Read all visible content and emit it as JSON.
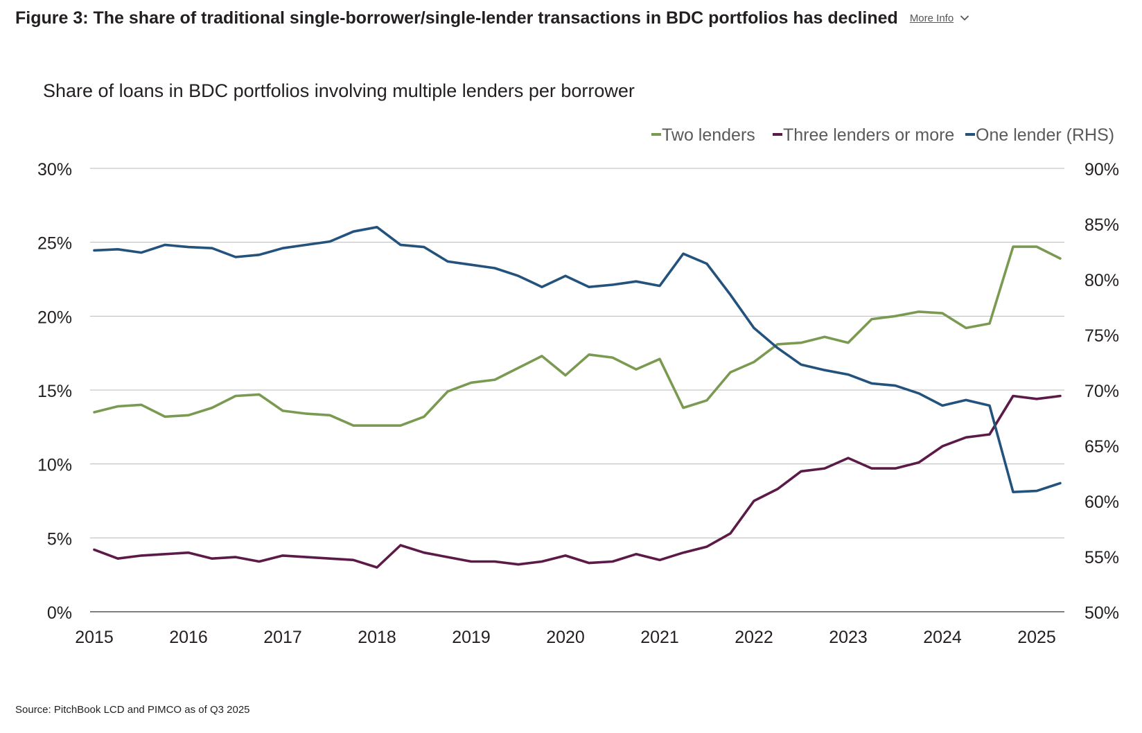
{
  "figure": {
    "title": "Figure 3: The share of traditional single-borrower/single-lender transactions in BDC portfolios has declined",
    "more_info_label": "More Info",
    "more_info_icon": "chevron-down-icon",
    "source": "Source: PitchBook LCD and PIMCO as of Q3 2025"
  },
  "chart_data": {
    "type": "line",
    "title": "Share of loans in BDC portfolios involving multiple lenders per borrower",
    "x": [
      "2015Q1",
      "2015Q2",
      "2015Q3",
      "2015Q4",
      "2016Q1",
      "2016Q2",
      "2016Q3",
      "2016Q4",
      "2017Q1",
      "2017Q2",
      "2017Q3",
      "2017Q4",
      "2018Q1",
      "2018Q2",
      "2018Q3",
      "2018Q4",
      "2019Q1",
      "2019Q2",
      "2019Q3",
      "2019Q4",
      "2020Q1",
      "2020Q2",
      "2020Q3",
      "2020Q4",
      "2021Q1",
      "2021Q2",
      "2021Q3",
      "2021Q4",
      "2022Q1",
      "2022Q2",
      "2022Q3",
      "2022Q4",
      "2023Q1",
      "2023Q2",
      "2023Q3",
      "2023Q4",
      "2024Q1",
      "2024Q2",
      "2024Q3",
      "2024Q4",
      "2025Q1",
      "2025Q2",
      "2025Q3"
    ],
    "xticks": [
      "2015",
      "2016",
      "2017",
      "2018",
      "2019",
      "2020",
      "2021",
      "2022",
      "2023",
      "2024",
      "2025"
    ],
    "xticks_at": [
      "2015Q1",
      "2016Q1",
      "2017Q1",
      "2018Q1",
      "2019Q1",
      "2020Q1",
      "2021Q1",
      "2022Q1",
      "2023Q1",
      "2024Q1",
      "2025Q1"
    ],
    "y_left": {
      "ticks": [
        "0%",
        "5%",
        "10%",
        "15%",
        "20%",
        "25%",
        "30%"
      ],
      "ylim": [
        0,
        30
      ]
    },
    "y_right": {
      "ticks": [
        "50%",
        "55%",
        "60%",
        "65%",
        "70%",
        "75%",
        "80%",
        "85%",
        "90%"
      ],
      "ylim": [
        50,
        90
      ]
    },
    "grid": true,
    "legend_position": "top-right",
    "series": [
      {
        "name": "Two lenders",
        "axis": "left",
        "color": "#7a9a52",
        "values": [
          13.5,
          13.9,
          14.0,
          13.2,
          13.3,
          13.8,
          14.6,
          14.7,
          13.6,
          13.4,
          13.3,
          12.6,
          12.6,
          12.6,
          13.2,
          14.9,
          15.5,
          15.7,
          16.5,
          17.3,
          16.0,
          17.4,
          17.2,
          16.4,
          17.1,
          13.8,
          14.3,
          16.2,
          16.9,
          18.1,
          18.2,
          18.6,
          18.2,
          19.8,
          20.0,
          20.3,
          20.2,
          19.2,
          19.5,
          24.7,
          24.7,
          23.9,
          null
        ]
      },
      {
        "name": "Three lenders or more",
        "axis": "left",
        "color": "#5b1a47",
        "values": [
          4.2,
          3.6,
          3.8,
          3.9,
          4.0,
          3.6,
          3.7,
          3.4,
          3.8,
          3.7,
          3.6,
          3.5,
          3.0,
          4.5,
          4.0,
          3.7,
          3.4,
          3.4,
          3.2,
          3.4,
          3.8,
          3.3,
          3.4,
          3.9,
          3.5,
          4.0,
          4.4,
          5.3,
          7.5,
          8.3,
          9.5,
          9.7,
          10.4,
          9.7,
          9.7,
          10.1,
          11.2,
          11.8,
          12.0,
          14.6,
          14.4,
          14.6,
          null
        ]
      },
      {
        "name": "One lender (RHS)",
        "axis": "right",
        "color": "#23527c",
        "values": [
          82.6,
          82.7,
          82.4,
          83.1,
          82.9,
          82.8,
          82.0,
          82.2,
          82.8,
          83.1,
          83.4,
          84.3,
          84.7,
          83.1,
          82.9,
          81.6,
          81.3,
          81.0,
          80.3,
          79.3,
          80.3,
          79.3,
          79.5,
          79.8,
          79.4,
          82.3,
          81.4,
          78.6,
          75.6,
          73.8,
          72.3,
          71.8,
          71.4,
          70.6,
          70.4,
          69.7,
          68.6,
          69.1,
          68.6,
          60.8,
          60.9,
          61.6,
          null
        ]
      }
    ]
  }
}
